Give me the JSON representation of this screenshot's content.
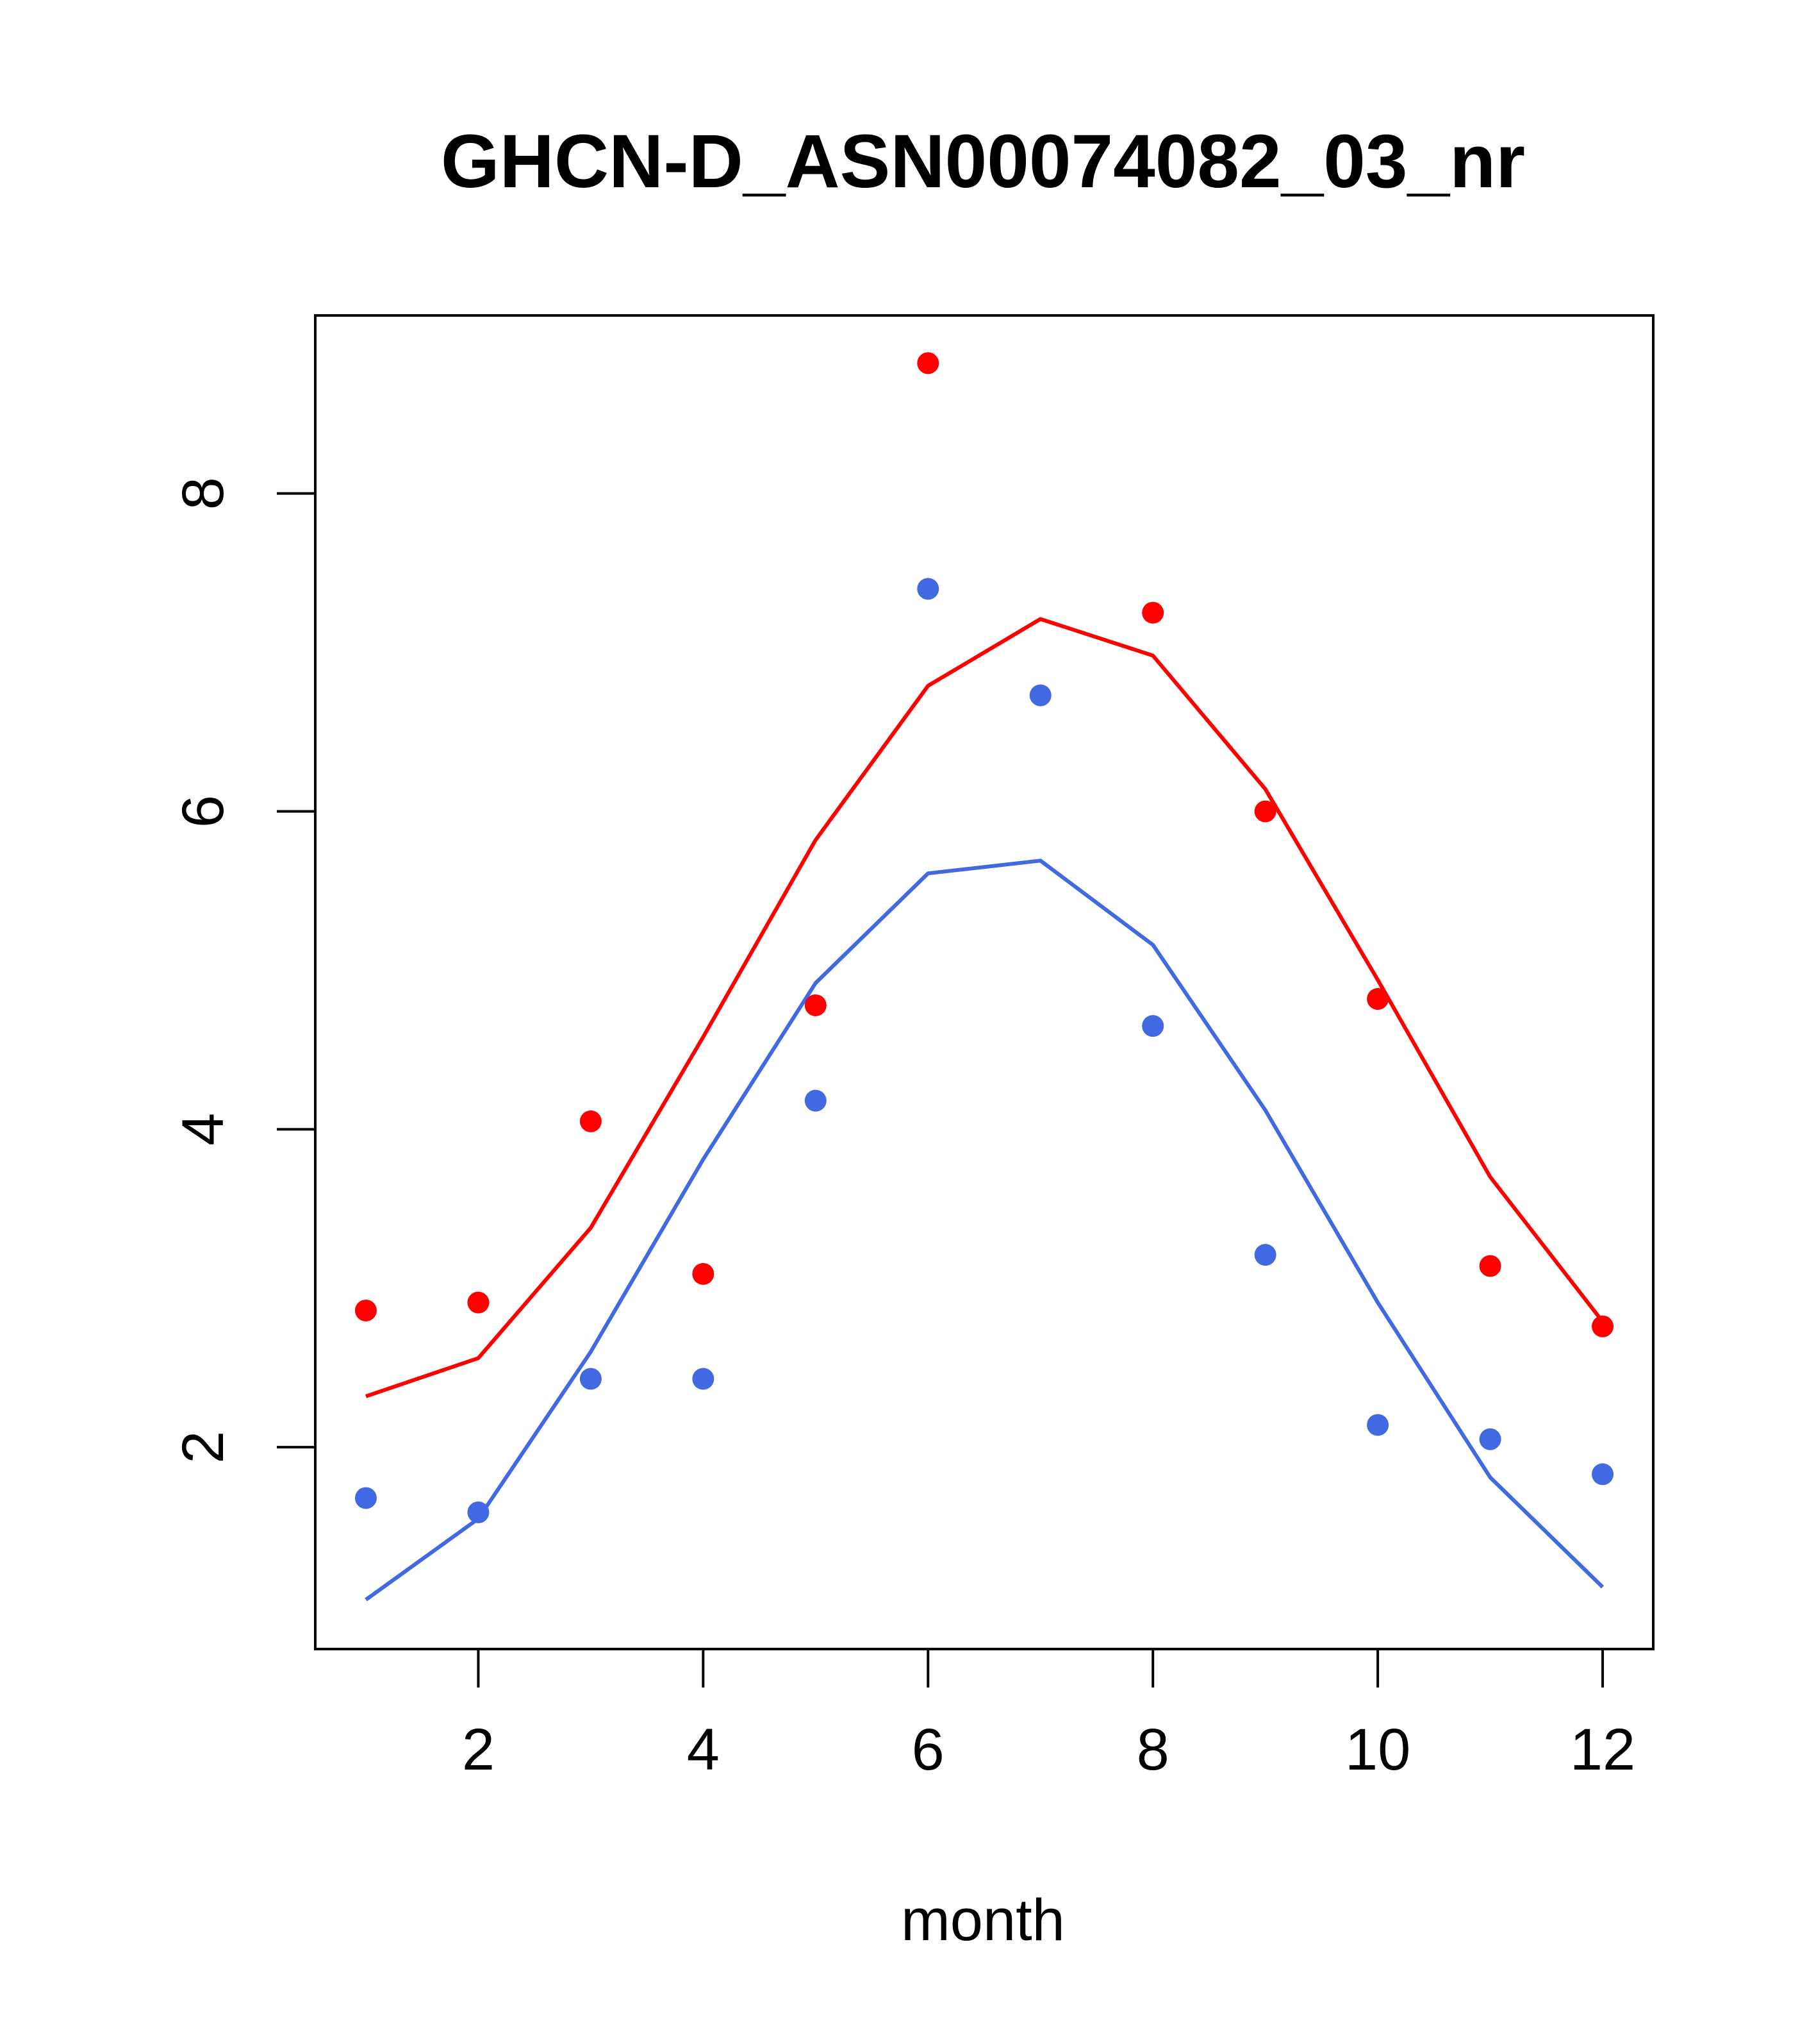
{
  "chart_data": {
    "type": "scatter",
    "title": "GHCN-D_ASN00074082_03_nr",
    "xlabel": "month",
    "ylabel": "",
    "xlim": [
      0.55,
      12.45
    ],
    "ylim": [
      0.73,
      9.12
    ],
    "x_ticks": [
      2,
      4,
      6,
      8,
      10,
      12
    ],
    "y_ticks": [
      2,
      4,
      6,
      8
    ],
    "grid": false,
    "legend": "none",
    "series": [
      {
        "color": "#ff0000",
        "mark": "points",
        "x": [
          1,
          2,
          3,
          4,
          5,
          6,
          7,
          8,
          9,
          10,
          11,
          12
        ],
        "y": [
          2.86,
          2.91,
          4.05,
          3.09,
          4.78,
          8.82,
          null,
          7.25,
          6.0,
          4.82,
          3.14,
          2.76
        ]
      },
      {
        "color": "#ff0000",
        "mark": "line",
        "x": [
          1,
          2,
          3,
          4,
          5,
          6,
          7,
          8,
          9,
          10,
          11,
          12
        ],
        "y": [
          2.32,
          2.56,
          3.38,
          4.58,
          5.82,
          6.79,
          7.21,
          6.98,
          6.14,
          4.94,
          3.7,
          2.79
        ]
      },
      {
        "color": "#4169e1",
        "mark": "points",
        "x": [
          1,
          2,
          3,
          4,
          5,
          6,
          7,
          8,
          9,
          10,
          11,
          12
        ],
        "y": [
          1.68,
          1.59,
          2.43,
          2.43,
          4.18,
          7.4,
          6.73,
          4.65,
          3.21,
          2.14,
          2.05,
          1.83
        ]
      },
      {
        "color": "#4169e1",
        "mark": "line",
        "x": [
          1,
          2,
          3,
          4,
          5,
          6,
          7,
          8,
          9,
          10,
          11,
          12
        ],
        "y": [
          1.04,
          1.55,
          2.6,
          3.81,
          4.92,
          5.61,
          5.69,
          5.16,
          4.12,
          2.91,
          1.81,
          1.12
        ]
      }
    ]
  }
}
